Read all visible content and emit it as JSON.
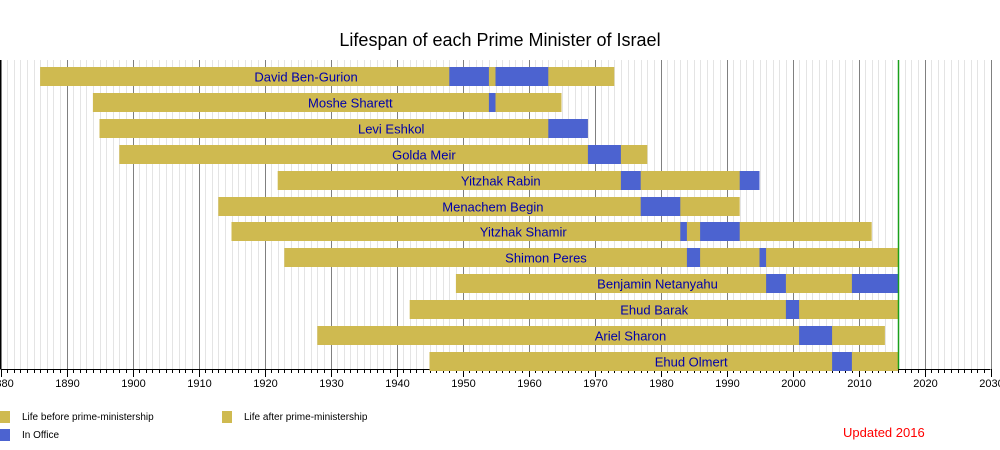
{
  "chart_data": {
    "type": "timeline",
    "title": "Lifespan of each Prime Minister of Israel",
    "xlim": [
      1880,
      2030
    ],
    "major_ticks": [
      1880,
      1890,
      1900,
      1910,
      1920,
      1930,
      1940,
      1950,
      1960,
      1970,
      1980,
      1990,
      2000,
      2010,
      2020,
      2030
    ],
    "minor_tick_step": 1,
    "current_year_marker": 2016,
    "colors": {
      "life": "#cfba50",
      "office": "#4c63d0",
      "marker": "#1aa01a",
      "label": "#0000aa"
    },
    "rows": [
      {
        "name": "David Ben-Gurion",
        "birth": 1886,
        "end": 1973,
        "office": [
          [
            1948,
            1954
          ],
          [
            1955,
            1963
          ]
        ]
      },
      {
        "name": "Moshe Sharett",
        "birth": 1894,
        "end": 1965,
        "office": [
          [
            1954,
            1955
          ]
        ]
      },
      {
        "name": "Levi Eshkol",
        "birth": 1895,
        "end": 1969,
        "office": [
          [
            1963,
            1969
          ]
        ]
      },
      {
        "name": "Golda Meir",
        "birth": 1898,
        "end": 1978,
        "office": [
          [
            1969,
            1974
          ]
        ]
      },
      {
        "name": "Yitzhak Rabin",
        "birth": 1922,
        "end": 1995,
        "office": [
          [
            1974,
            1977
          ],
          [
            1992,
            1995
          ]
        ]
      },
      {
        "name": "Menachem Begin",
        "birth": 1913,
        "end": 1992,
        "office": [
          [
            1977,
            1983
          ]
        ]
      },
      {
        "name": "Yitzhak Shamir",
        "birth": 1915,
        "end": 2012,
        "office": [
          [
            1983,
            1984
          ],
          [
            1986,
            1992
          ]
        ]
      },
      {
        "name": "Shimon Peres",
        "birth": 1923,
        "end": 2016,
        "office": [
          [
            1984,
            1986
          ],
          [
            1995,
            1996
          ]
        ]
      },
      {
        "name": "Benjamin Netanyahu",
        "birth": 1949,
        "end": 2016,
        "office": [
          [
            1996,
            1999
          ],
          [
            2009,
            2016
          ]
        ]
      },
      {
        "name": "Ehud Barak",
        "birth": 1942,
        "end": 2016,
        "office": [
          [
            1999,
            2001
          ]
        ]
      },
      {
        "name": "Ariel Sharon",
        "birth": 1928,
        "end": 2014,
        "office": [
          [
            2001,
            2006
          ]
        ]
      },
      {
        "name": "Ehud Olmert",
        "birth": 1945,
        "end": 2016,
        "office": [
          [
            2006,
            2009
          ]
        ]
      }
    ],
    "legend": [
      {
        "label": "Life before prime-ministership",
        "color": "#cfba50"
      },
      {
        "label": "In Office",
        "color": "#4c63d0"
      },
      {
        "label": "Life after prime-ministership",
        "color": "#cfba50"
      }
    ],
    "note": "Updated 2016"
  }
}
